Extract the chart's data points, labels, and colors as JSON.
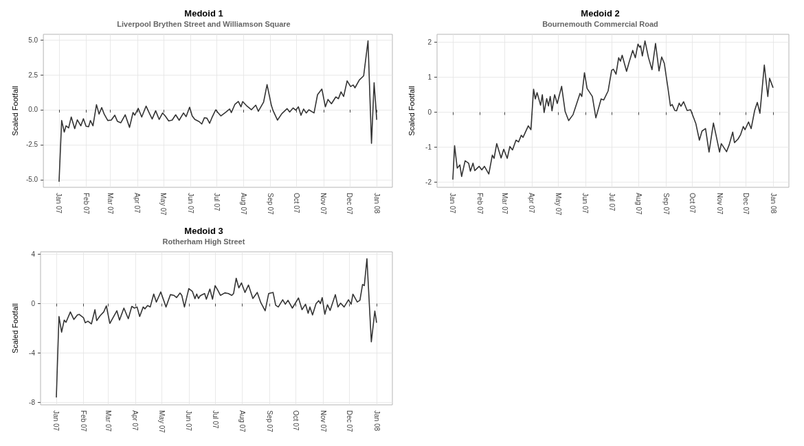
{
  "chart_data": [
    {
      "type": "line",
      "title": "Medoid 1",
      "subtitle": "Liverpool Brythen Street and Williamson Square",
      "ylabel": "Scaled Footfall",
      "color": "#333333",
      "marker": "none",
      "grid": true,
      "xlim": [
        "2006-12-14",
        "2008-01-19"
      ],
      "ylim": [
        -5.55,
        5.4
      ],
      "xticks": [
        {
          "value": "2007-01-01",
          "label": "Jan 07"
        },
        {
          "value": "2007-02-01",
          "label": "Feb 07"
        },
        {
          "value": "2007-03-01",
          "label": "Mar 07"
        },
        {
          "value": "2007-04-01",
          "label": "Apr 07"
        },
        {
          "value": "2007-05-01",
          "label": "May 07"
        },
        {
          "value": "2007-06-01",
          "label": "Jun 07"
        },
        {
          "value": "2007-07-01",
          "label": "Jul 07"
        },
        {
          "value": "2007-08-01",
          "label": "Aug 07"
        },
        {
          "value": "2007-09-01",
          "label": "Sep 07"
        },
        {
          "value": "2007-10-01",
          "label": "Oct 07"
        },
        {
          "value": "2007-11-01",
          "label": "Nov 07"
        },
        {
          "value": "2007-12-01",
          "label": "Dec 07"
        },
        {
          "value": "2008-01-01",
          "label": "Jan 08"
        }
      ],
      "yticks": [
        {
          "value": -5,
          "label": "-5.0"
        },
        {
          "value": -2.5,
          "label": "-2.5"
        },
        {
          "value": 0,
          "label": "0.0"
        },
        {
          "value": 2.5,
          "label": "2.5"
        },
        {
          "value": 5,
          "label": "5.0"
        }
      ],
      "x": [
        "2007-01-01",
        "2007-01-04",
        "2007-01-07",
        "2007-01-09",
        "2007-01-12",
        "2007-01-15",
        "2007-01-19",
        "2007-01-22",
        "2007-01-26",
        "2007-01-29",
        "2007-02-01",
        "2007-02-04",
        "2007-02-06",
        "2007-02-09",
        "2007-02-13",
        "2007-02-16",
        "2007-02-19",
        "2007-02-22",
        "2007-02-26",
        "2007-03-02",
        "2007-03-06",
        "2007-03-09",
        "2007-03-13",
        "2007-03-18",
        "2007-03-23",
        "2007-03-27",
        "2007-03-29",
        "2007-04-02",
        "2007-04-06",
        "2007-04-11",
        "2007-04-15",
        "2007-04-18",
        "2007-04-22",
        "2007-04-26",
        "2007-04-30",
        "2007-05-03",
        "2007-05-07",
        "2007-05-11",
        "2007-05-15",
        "2007-05-19",
        "2007-05-24",
        "2007-05-27",
        "2007-05-31",
        "2007-06-03",
        "2007-06-06",
        "2007-06-11",
        "2007-06-14",
        "2007-06-17",
        "2007-06-20",
        "2007-06-23",
        "2007-06-26",
        "2007-06-30",
        "2007-07-03",
        "2007-07-06",
        "2007-07-11",
        "2007-07-16",
        "2007-07-18",
        "2007-07-22",
        "2007-07-26",
        "2007-07-29",
        "2007-07-31",
        "2007-08-05",
        "2007-08-10",
        "2007-08-15",
        "2007-08-18",
        "2007-08-24",
        "2007-08-28",
        "2007-09-02",
        "2007-09-04",
        "2007-09-09",
        "2007-09-14",
        "2007-09-20",
        "2007-09-23",
        "2007-09-27",
        "2007-09-30",
        "2007-10-03",
        "2007-10-06",
        "2007-10-09",
        "2007-10-12",
        "2007-10-15",
        "2007-10-21",
        "2007-10-25",
        "2007-10-30",
        "2007-11-03",
        "2007-11-06",
        "2007-11-10",
        "2007-11-15",
        "2007-11-18",
        "2007-11-21",
        "2007-11-24",
        "2007-11-28",
        "2007-12-02",
        "2007-12-05",
        "2007-12-07",
        "2007-12-12",
        "2007-12-17",
        "2007-12-22",
        "2007-12-26",
        "2007-12-29",
        "2008-01-01"
      ],
      "values": [
        -5.15,
        -0.77,
        -1.6,
        -1.15,
        -1.3,
        -0.52,
        -1.35,
        -0.72,
        -1.15,
        -0.64,
        -1.18,
        -1.21,
        -0.77,
        -1.15,
        0.36,
        -0.31,
        0.16,
        -0.33,
        -0.77,
        -0.74,
        -0.39,
        -0.82,
        -0.93,
        -0.36,
        -1.26,
        -0.2,
        -0.39,
        0.1,
        -0.52,
        0.26,
        -0.28,
        -0.66,
        -0.07,
        -0.69,
        -0.23,
        -0.44,
        -0.8,
        -0.74,
        -0.36,
        -0.75,
        -0.23,
        -0.49,
        0.18,
        -0.44,
        -0.69,
        -0.85,
        -1.02,
        -0.57,
        -0.61,
        -0.97,
        -0.52,
        0.0,
        -0.23,
        -0.44,
        -0.2,
        0.05,
        -0.2,
        0.38,
        0.59,
        0.21,
        0.59,
        0.26,
        0.0,
        0.33,
        -0.11,
        0.54,
        1.8,
        0.3,
        -0.07,
        -0.74,
        -0.28,
        0.08,
        -0.16,
        0.13,
        -0.03,
        0.21,
        -0.39,
        0.05,
        -0.23,
        0.0,
        -0.23,
        1.08,
        1.48,
        0.21,
        0.74,
        0.43,
        0.92,
        0.79,
        1.28,
        0.95,
        2.07,
        1.66,
        1.77,
        1.57,
        2.13,
        2.43,
        4.93,
        -2.41,
        1.93,
        -0.72
      ]
    },
    {
      "type": "line",
      "title": "Medoid 2",
      "subtitle": "Bournemouth Commercial Road",
      "ylabel": "Scaled Footfall",
      "color": "#333333",
      "marker": "none",
      "grid": true,
      "xlim": [
        "2006-12-14",
        "2008-01-19"
      ],
      "ylim": [
        -2.15,
        2.23
      ],
      "xticks": [
        {
          "value": "2007-01-01",
          "label": "Jan 07"
        },
        {
          "value": "2007-02-01",
          "label": "Feb 07"
        },
        {
          "value": "2007-03-01",
          "label": "Mar 07"
        },
        {
          "value": "2007-04-01",
          "label": "Apr 07"
        },
        {
          "value": "2007-05-01",
          "label": "May 07"
        },
        {
          "value": "2007-06-01",
          "label": "Jun 07"
        },
        {
          "value": "2007-07-01",
          "label": "Jul 07"
        },
        {
          "value": "2007-08-01",
          "label": "Aug 07"
        },
        {
          "value": "2007-09-01",
          "label": "Sep 07"
        },
        {
          "value": "2007-10-01",
          "label": "Oct 07"
        },
        {
          "value": "2007-11-01",
          "label": "Nov 07"
        },
        {
          "value": "2007-12-01",
          "label": "Dec 07"
        },
        {
          "value": "2008-01-01",
          "label": "Jan 08"
        }
      ],
      "yticks": [
        -2,
        -1,
        0,
        1,
        2
      ],
      "x": [
        "2007-01-01",
        "2007-01-03",
        "2007-01-06",
        "2007-01-09",
        "2007-01-11",
        "2007-01-15",
        "2007-01-19",
        "2007-01-21",
        "2007-01-24",
        "2007-01-26",
        "2007-01-31",
        "2007-02-03",
        "2007-02-06",
        "2007-02-11",
        "2007-02-15",
        "2007-02-17",
        "2007-02-20",
        "2007-02-25",
        "2007-02-28",
        "2007-03-04",
        "2007-03-07",
        "2007-03-10",
        "2007-03-14",
        "2007-03-17",
        "2007-03-20",
        "2007-03-22",
        "2007-03-28",
        "2007-03-31",
        "2007-04-03",
        "2007-04-05",
        "2007-04-07",
        "2007-04-11",
        "2007-04-13",
        "2007-04-15",
        "2007-04-18",
        "2007-04-20",
        "2007-04-22",
        "2007-04-24",
        "2007-04-27",
        "2007-04-30",
        "2007-05-05",
        "2007-05-09",
        "2007-05-13",
        "2007-05-18",
        "2007-05-26",
        "2007-05-28",
        "2007-05-31",
        "2007-06-03",
        "2007-06-09",
        "2007-06-13",
        "2007-06-19",
        "2007-06-22",
        "2007-06-27",
        "2007-07-01",
        "2007-07-03",
        "2007-07-06",
        "2007-07-09",
        "2007-07-11",
        "2007-07-13",
        "2007-07-18",
        "2007-07-21",
        "2007-07-25",
        "2007-07-28",
        "2007-07-31",
        "2007-08-02",
        "2007-08-03",
        "2007-08-05",
        "2007-08-08",
        "2007-08-12",
        "2007-08-16",
        "2007-08-20",
        "2007-08-24",
        "2007-08-27",
        "2007-08-30",
        "2007-09-03",
        "2007-09-06",
        "2007-09-08",
        "2007-09-11",
        "2007-09-13",
        "2007-09-16",
        "2007-09-18",
        "2007-09-21",
        "2007-09-25",
        "2007-09-29",
        "2007-10-05",
        "2007-10-09",
        "2007-10-12",
        "2007-10-16",
        "2007-10-20",
        "2007-10-25",
        "2007-10-28",
        "2007-11-01",
        "2007-11-03",
        "2007-11-09",
        "2007-11-12",
        "2007-11-16",
        "2007-11-18",
        "2007-11-22",
        "2007-11-25",
        "2007-11-28",
        "2007-11-30",
        "2007-12-04",
        "2007-12-07",
        "2007-12-11",
        "2007-12-14",
        "2007-12-17",
        "2007-12-22",
        "2007-12-26",
        "2007-12-28",
        "2008-01-01"
      ],
      "values": [
        -1.93,
        -0.96,
        -1.6,
        -1.51,
        -1.84,
        -1.39,
        -1.46,
        -1.69,
        -1.46,
        -1.67,
        -1.55,
        -1.65,
        -1.55,
        -1.77,
        -1.23,
        -1.32,
        -0.9,
        -1.31,
        -1.06,
        -1.32,
        -0.98,
        -1.08,
        -0.8,
        -0.85,
        -0.66,
        -0.72,
        -0.39,
        -0.5,
        0.66,
        0.38,
        0.56,
        0.2,
        0.5,
        -0.01,
        0.39,
        0.18,
        0.45,
        0.04,
        0.5,
        0.25,
        0.74,
        0.02,
        -0.24,
        -0.07,
        0.54,
        0.45,
        1.13,
        0.68,
        0.45,
        -0.16,
        0.38,
        0.35,
        0.61,
        1.2,
        1.23,
        1.09,
        1.56,
        1.46,
        1.63,
        1.17,
        1.44,
        1.77,
        1.56,
        1.95,
        1.86,
        1.9,
        1.61,
        2.04,
        1.56,
        1.22,
        1.97,
        1.18,
        1.58,
        1.4,
        0.72,
        0.18,
        0.22,
        0.05,
        0.04,
        0.26,
        0.17,
        0.3,
        0.05,
        0.07,
        -0.33,
        -0.8,
        -0.54,
        -0.47,
        -1.14,
        -0.31,
        -0.66,
        -1.14,
        -0.9,
        -1.13,
        -0.93,
        -0.57,
        -0.87,
        -0.77,
        -0.64,
        -0.41,
        -0.5,
        -0.28,
        -0.47,
        0.05,
        0.28,
        -0.03,
        1.35,
        0.45,
        0.97,
        0.7
      ]
    },
    {
      "type": "line",
      "title": "Medoid 3",
      "subtitle": "Rotherham High Street",
      "ylabel": "Scaled Footfall",
      "color": "#333333",
      "marker": "none",
      "grid": true,
      "xlim": [
        "2006-12-14",
        "2008-01-19"
      ],
      "ylim": [
        -8.2,
        4.2
      ],
      "xticks": [
        {
          "value": "2007-01-01",
          "label": "Jan 07"
        },
        {
          "value": "2007-02-01",
          "label": "Feb 07"
        },
        {
          "value": "2007-03-01",
          "label": "Mar 07"
        },
        {
          "value": "2007-04-01",
          "label": "Apr 07"
        },
        {
          "value": "2007-05-01",
          "label": "May 07"
        },
        {
          "value": "2007-06-01",
          "label": "Jun 07"
        },
        {
          "value": "2007-07-01",
          "label": "Jul 07"
        },
        {
          "value": "2007-08-01",
          "label": "Aug 07"
        },
        {
          "value": "2007-09-01",
          "label": "Sep 07"
        },
        {
          "value": "2007-10-01",
          "label": "Oct 07"
        },
        {
          "value": "2007-11-01",
          "label": "Nov 07"
        },
        {
          "value": "2007-12-01",
          "label": "Dec 07"
        },
        {
          "value": "2008-01-01",
          "label": "Jan 08"
        }
      ],
      "yticks": [
        -8,
        -4,
        0,
        4
      ],
      "x": [
        "2007-01-01",
        "2007-01-04",
        "2007-01-07",
        "2007-01-10",
        "2007-01-12",
        "2007-01-17",
        "2007-01-21",
        "2007-01-25",
        "2007-01-27",
        "2007-02-01",
        "2007-02-03",
        "2007-02-06",
        "2007-02-10",
        "2007-02-14",
        "2007-02-16",
        "2007-02-20",
        "2007-02-24",
        "2007-02-27",
        "2007-03-03",
        "2007-03-07",
        "2007-03-11",
        "2007-03-14",
        "2007-03-19",
        "2007-03-24",
        "2007-03-28",
        "2007-03-31",
        "2007-04-03",
        "2007-04-06",
        "2007-04-10",
        "2007-04-12",
        "2007-04-15",
        "2007-04-18",
        "2007-04-22",
        "2007-04-25",
        "2007-04-30",
        "2007-05-06",
        "2007-05-11",
        "2007-05-15",
        "2007-05-18",
        "2007-05-22",
        "2007-05-24",
        "2007-05-27",
        "2007-06-01",
        "2007-06-05",
        "2007-06-08",
        "2007-06-10",
        "2007-06-12",
        "2007-06-14",
        "2007-06-19",
        "2007-06-21",
        "2007-06-25",
        "2007-06-28",
        "2007-07-01",
        "2007-07-04",
        "2007-07-07",
        "2007-07-12",
        "2007-07-16",
        "2007-07-20",
        "2007-07-22",
        "2007-07-25",
        "2007-07-28",
        "2007-07-31",
        "2007-08-04",
        "2007-08-08",
        "2007-08-13",
        "2007-08-18",
        "2007-08-22",
        "2007-08-27",
        "2007-08-31",
        "2007-09-05",
        "2007-09-08",
        "2007-09-11",
        "2007-09-16",
        "2007-09-19",
        "2007-09-22",
        "2007-09-27",
        "2007-10-04",
        "2007-10-08",
        "2007-10-12",
        "2007-10-15",
        "2007-10-17",
        "2007-10-20",
        "2007-10-24",
        "2007-10-27",
        "2007-10-29",
        "2007-10-31",
        "2007-11-03",
        "2007-11-06",
        "2007-11-09",
        "2007-11-15",
        "2007-11-18",
        "2007-11-21",
        "2007-11-25",
        "2007-11-30",
        "2007-12-03",
        "2007-12-05",
        "2007-12-10",
        "2007-12-13",
        "2007-12-16",
        "2007-12-18",
        "2007-12-21",
        "2007-12-26",
        "2007-12-30",
        "2008-01-01"
      ],
      "values": [
        -7.6,
        -1.04,
        -2.31,
        -1.33,
        -1.51,
        -0.67,
        -1.28,
        -0.91,
        -0.87,
        -1.15,
        -1.55,
        -1.42,
        -1.64,
        -0.49,
        -1.37,
        -0.97,
        -0.67,
        -0.18,
        -1.6,
        -1.09,
        -0.58,
        -1.33,
        -0.36,
        -1.22,
        -0.22,
        -0.36,
        -0.27,
        -1.04,
        -0.27,
        -0.42,
        -0.15,
        -0.27,
        0.78,
        0.13,
        0.95,
        -0.27,
        0.73,
        0.67,
        0.49,
        0.86,
        0.67,
        -0.27,
        1.22,
        1.0,
        0.4,
        0.78,
        0.42,
        0.64,
        0.82,
        0.36,
        1.18,
        0.36,
        1.46,
        1.09,
        0.67,
        0.87,
        0.82,
        0.67,
        0.82,
        2.06,
        1.28,
        1.68,
        0.91,
        1.51,
        0.42,
        0.91,
        0.09,
        -0.58,
        0.82,
        0.91,
        -0.13,
        -0.27,
        0.31,
        -0.05,
        0.27,
        -0.36,
        0.46,
        -0.49,
        -0.05,
        -0.78,
        -0.27,
        -0.91,
        0.0,
        0.24,
        0.0,
        0.49,
        -0.86,
        -0.09,
        -0.55,
        0.73,
        -0.27,
        0.04,
        -0.27,
        0.31,
        -0.05,
        0.77,
        0.13,
        0.27,
        1.55,
        1.46,
        3.64,
        -3.1,
        -0.6,
        -1.55
      ]
    }
  ]
}
